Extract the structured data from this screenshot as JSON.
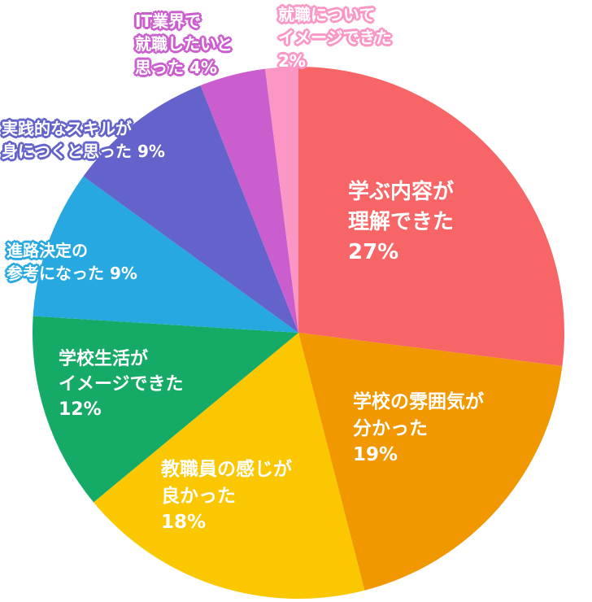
{
  "chart_data": {
    "type": "pie",
    "slices": [
      {
        "label_lines": [
          "学ぶ内容が",
          "理解できた",
          "27%"
        ],
        "value": 27,
        "color": "#f86566"
      },
      {
        "label_lines": [
          "学校の雰囲気が",
          "分かった",
          "19%"
        ],
        "value": 19,
        "color": "#f19700"
      },
      {
        "label_lines": [
          "教職員の感じが",
          "良かった",
          "18%"
        ],
        "value": 18,
        "color": "#fbc700"
      },
      {
        "label_lines": [
          "学校生活が",
          "イメージできた",
          "12%"
        ],
        "value": 12,
        "color": "#15ab67"
      },
      {
        "label_lines": [
          "進路決定の",
          "参考になった 9%"
        ],
        "value": 9,
        "color": "#27a8e0"
      },
      {
        "label_lines": [
          "実践的なスキルが",
          "身につくと思った 9%"
        ],
        "value": 9,
        "color": "#6463cb"
      },
      {
        "label_lines": [
          "IT業界で",
          "就職したいと",
          "思った 4%"
        ],
        "value": 4,
        "color": "#cb5ece"
      },
      {
        "label_lines": [
          "就職について",
          "イメージできた",
          "2%"
        ],
        "value": 2,
        "color": "#fb96c5"
      }
    ],
    "start": "12 o'clock",
    "direction": "clockwise"
  }
}
